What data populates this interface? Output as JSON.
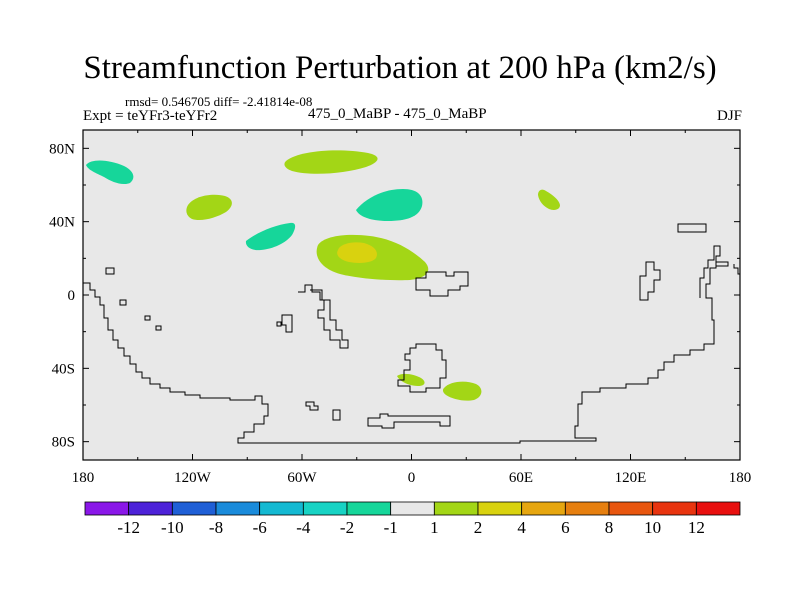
{
  "chart_data": {
    "type": "heatmap",
    "title": "Streamfunction Perturbation at 200 hPa (km2/s)",
    "stats": "rmsd= 0.546705 diff= -2.41814e-08",
    "experiment": "Expt = teYFr3-teYFr2",
    "center_label": "475_0_MaBP - 475_0_MaBP",
    "season": "DJF",
    "x_ticks": [
      "180",
      "120W",
      "60W",
      "0",
      "60E",
      "120E",
      "180"
    ],
    "x_tick_values": [
      -180,
      -120,
      -60,
      0,
      60,
      120,
      180
    ],
    "y_ticks": [
      "80N",
      "40N",
      "0",
      "40S",
      "80S"
    ],
    "y_tick_values": [
      80,
      40,
      0,
      -40,
      -80
    ],
    "xlim": [
      -180,
      180
    ],
    "ylim": [
      -90,
      90
    ],
    "colorbar": {
      "labels": [
        "-12",
        "-10",
        "-8",
        "-6",
        "-4",
        "-2",
        "-1",
        "1",
        "2",
        "4",
        "6",
        "8",
        "10",
        "12"
      ],
      "colors": [
        "#8a17e8",
        "#4d22d8",
        "#1f5fd6",
        "#1a8bdb",
        "#14b9d2",
        "#18d3c4",
        "#16d69a",
        "#e8e8e8",
        "#a3d616",
        "#d9d20f",
        "#e6a610",
        "#e67f0f",
        "#e8560f",
        "#e8340f",
        "#e8100f"
      ]
    },
    "anomalies": [
      {
        "name": "anomaly-nw-pacific-negative",
        "lon": -152,
        "lat": 68,
        "value": -1.5
      },
      {
        "name": "anomaly-north-atlantic-positive",
        "lon": -40,
        "lat": 72,
        "value": 1.5
      },
      {
        "name": "anomaly-na-midlat-positive",
        "lon": -108,
        "lat": 49,
        "value": 1.5
      },
      {
        "name": "anomaly-atlantic-negative",
        "lon": -5,
        "lat": 49,
        "value": -1.5
      },
      {
        "name": "anomaly-asia-positive",
        "lon": 71,
        "lat": 50,
        "value": 1.5
      },
      {
        "name": "anomaly-west-atlantic-negative",
        "lon": -78,
        "lat": 32,
        "value": -1.5
      },
      {
        "name": "anomaly-subtropic-positive",
        "lon": -30,
        "lat": 20,
        "value": 3.0
      },
      {
        "name": "anomaly-subtropic-core",
        "lon": -31,
        "lat": 23,
        "value": 4.5
      },
      {
        "name": "anomaly-so-atlantic-positive",
        "lon": 0,
        "lat": -46,
        "value": 1.5
      },
      {
        "name": "anomaly-so-indian-positive",
        "lon": 28,
        "lat": -51,
        "value": 1.5
      }
    ]
  }
}
